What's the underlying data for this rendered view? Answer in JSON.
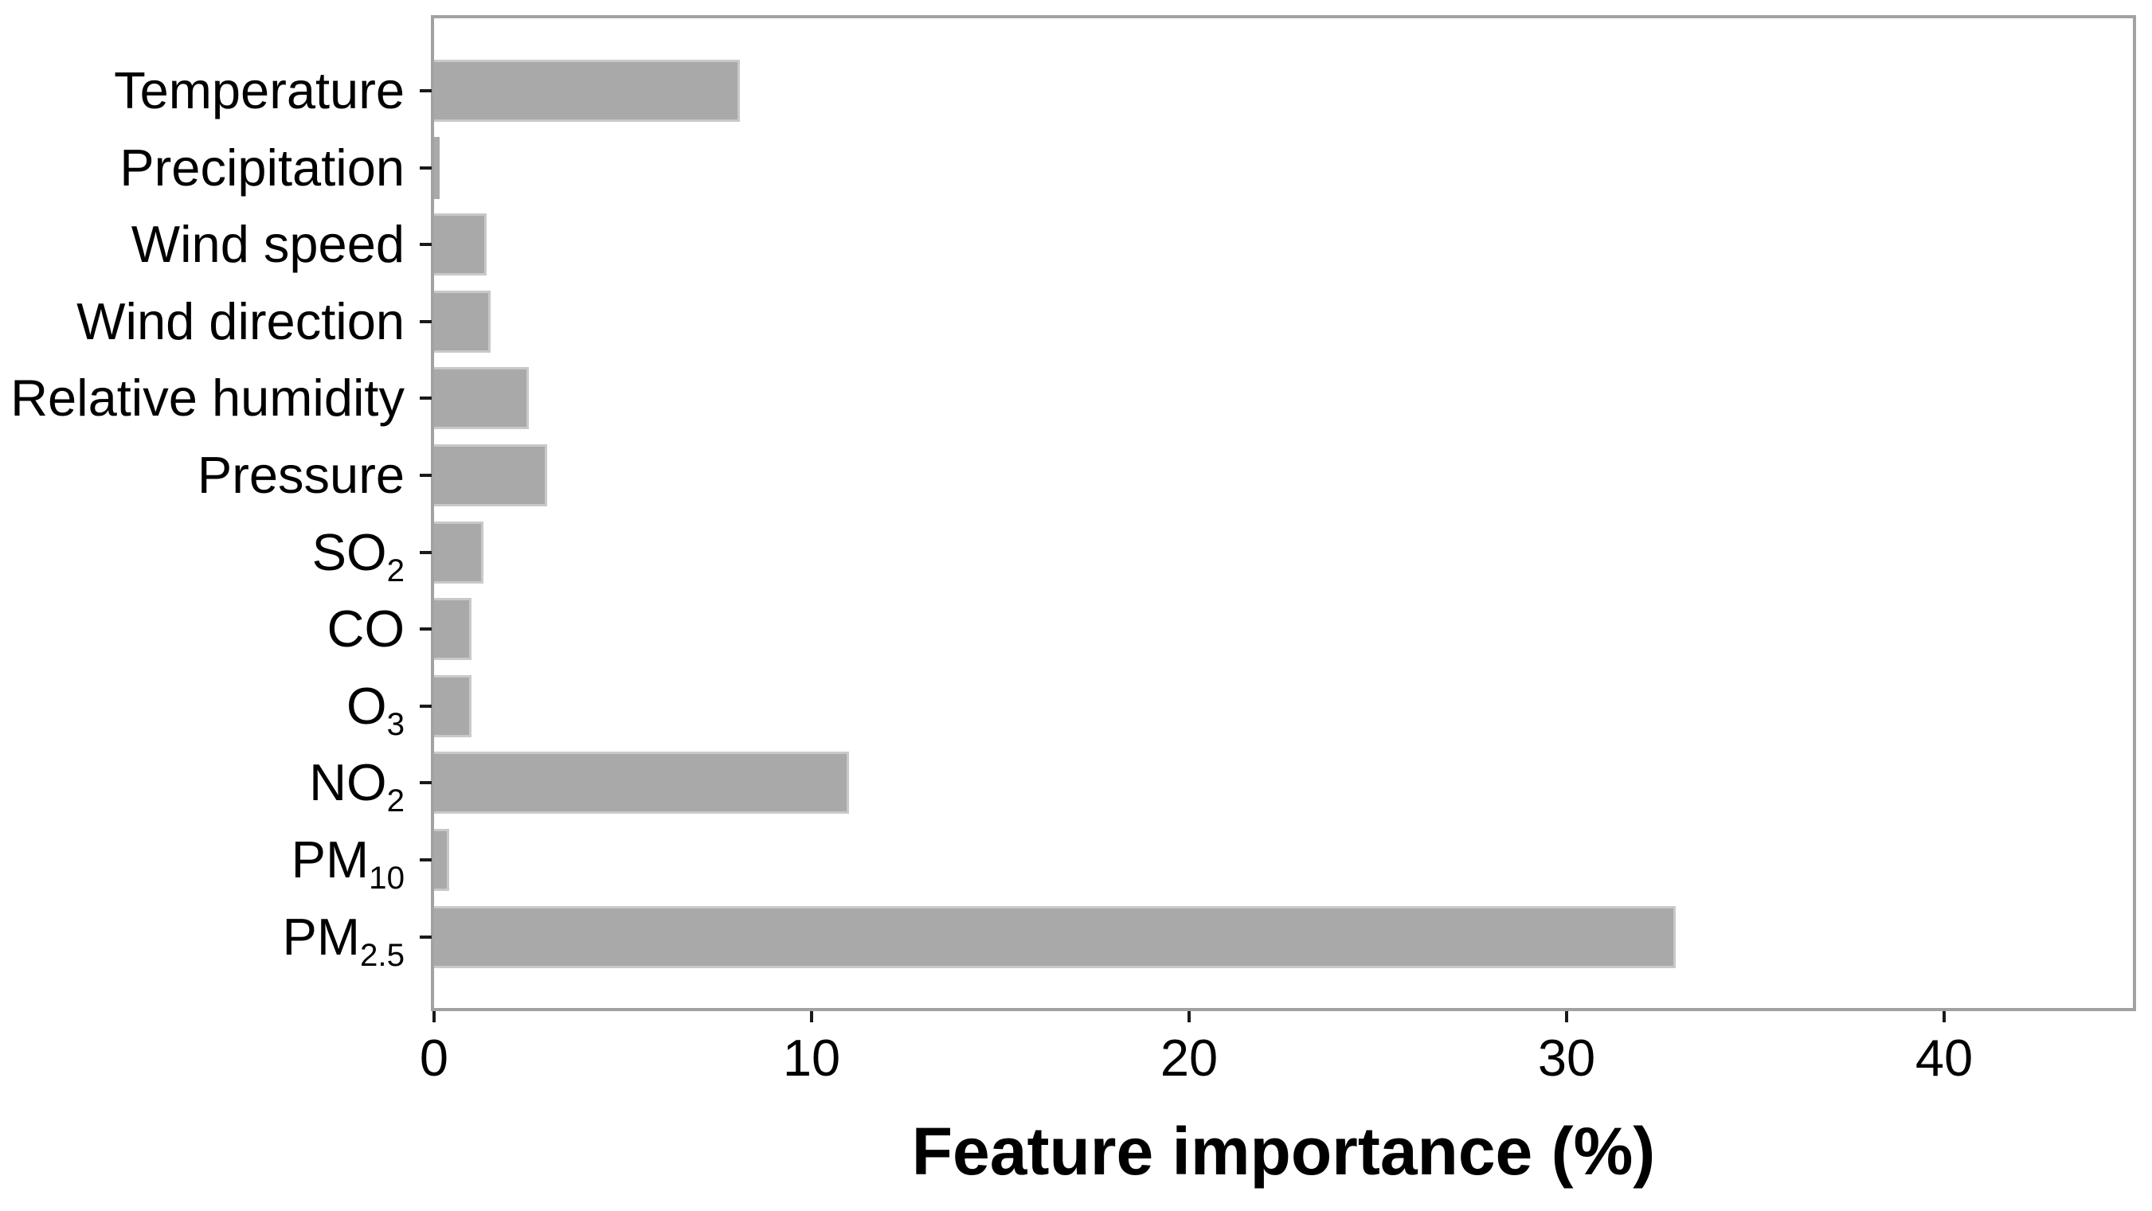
{
  "chart_data": {
    "type": "bar",
    "orientation": "horizontal",
    "title": "",
    "xlabel": "Feature importance (%)",
    "ylabel": "",
    "xlim": [
      0,
      45
    ],
    "xticks": [
      "0",
      "10",
      "20",
      "30",
      "40"
    ],
    "grid": false,
    "legend": false,
    "bar_color": "#a9a9a9",
    "bar_edge_color": "#c9c9c9",
    "axis_color": "#a2a2a2",
    "categories": [
      "Temperature",
      "Precipitation",
      "Wind speed",
      "Wind direction",
      "Relative humidity",
      "Pressure",
      "SO2",
      "CO",
      "O3",
      "NO2",
      "PM10",
      "PM2.5"
    ],
    "categories_rich": [
      {
        "main": "Temperature",
        "sub": ""
      },
      {
        "main": "Precipitation",
        "sub": ""
      },
      {
        "main": "Wind speed",
        "sub": ""
      },
      {
        "main": "Wind direction",
        "sub": ""
      },
      {
        "main": "Relative humidity",
        "sub": ""
      },
      {
        "main": "Pressure",
        "sub": ""
      },
      {
        "main": "SO",
        "sub": "2"
      },
      {
        "main": "CO",
        "sub": ""
      },
      {
        "main": "O",
        "sub": "3"
      },
      {
        "main": "NO",
        "sub": "2"
      },
      {
        "main": "PM",
        "sub": "10"
      },
      {
        "main": "PM",
        "sub": "2.5"
      }
    ],
    "values": [
      8.1,
      0.15,
      1.4,
      1.5,
      2.5,
      3.0,
      1.3,
      1.0,
      1.0,
      11.0,
      0.4,
      32.9
    ]
  }
}
